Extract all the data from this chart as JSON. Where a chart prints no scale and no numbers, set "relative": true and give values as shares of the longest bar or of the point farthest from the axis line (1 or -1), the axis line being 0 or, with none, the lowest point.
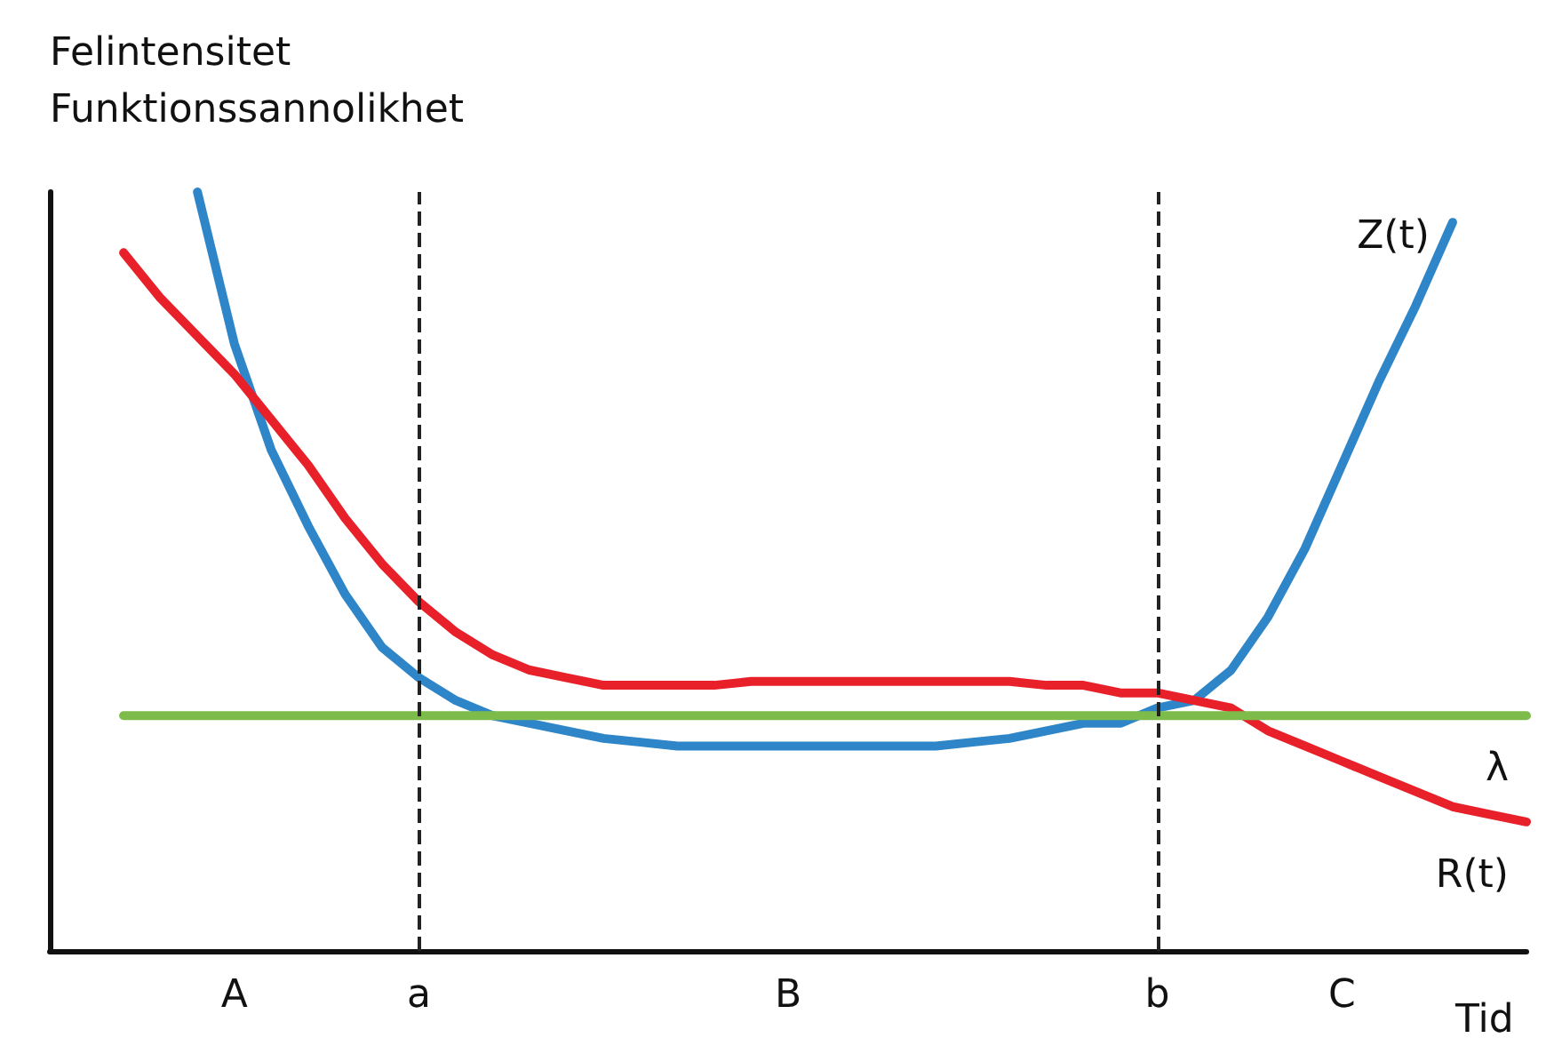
{
  "chart_data": {
    "type": "line",
    "relative": true,
    "ylabel": "Felintensitet\nFunktionssannolikhet",
    "xlabel": "Tid",
    "tick_labels": "x",
    "marker": "none",
    "legend": false,
    "categories": [
      null,
      null,
      null,
      null,
      null,
      "A",
      null,
      null,
      null,
      null,
      "a",
      null,
      null,
      null,
      null,
      null,
      null,
      null,
      null,
      null,
      "B",
      null,
      null,
      null,
      null,
      null,
      null,
      null,
      null,
      null,
      "b",
      null,
      null,
      null,
      null,
      "C",
      null,
      null,
      null,
      null,
      null
    ],
    "series": [
      {
        "name": "Z(t)",
        "color": "#2e86c8",
        "values": [
          null,
          null,
          null,
          null,
          1.0,
          0.8,
          0.66,
          0.56,
          0.47,
          0.4,
          0.36,
          0.33,
          0.31,
          0.3,
          0.29,
          0.28,
          0.275,
          0.27,
          0.27,
          0.27,
          0.27,
          0.27,
          0.27,
          0.27,
          0.27,
          0.275,
          0.28,
          0.29,
          0.3,
          0.3,
          0.32,
          0.33,
          0.37,
          0.44,
          0.53,
          0.64,
          0.75,
          0.85,
          0.96,
          null,
          null
        ]
      },
      {
        "name": "R(t)",
        "color": "#e8202a",
        "values": [
          null,
          null,
          0.92,
          0.86,
          0.81,
          0.76,
          0.7,
          0.64,
          0.57,
          0.51,
          0.46,
          0.42,
          0.39,
          0.37,
          0.36,
          0.35,
          0.35,
          0.35,
          0.35,
          0.355,
          0.355,
          0.355,
          0.355,
          0.355,
          0.355,
          0.355,
          0.355,
          0.35,
          0.35,
          0.34,
          0.34,
          0.33,
          0.32,
          0.29,
          0.27,
          0.25,
          0.23,
          0.21,
          0.19,
          0.18,
          0.17
        ]
      },
      {
        "name": "λ",
        "color": "#7dbb4a",
        "values": [
          null,
          null,
          0.31,
          0.31,
          0.31,
          0.31,
          0.31,
          0.31,
          0.31,
          0.31,
          0.31,
          0.31,
          0.31,
          0.31,
          0.31,
          0.31,
          0.31,
          0.31,
          0.31,
          0.31,
          0.31,
          0.31,
          0.31,
          0.31,
          0.31,
          0.31,
          0.31,
          0.31,
          0.31,
          0.31,
          0.31,
          0.31,
          0.31,
          0.31,
          0.31,
          0.31,
          0.31,
          0.31,
          0.31,
          0.31,
          0.31
        ]
      }
    ],
    "ref_lines": [
      {
        "axis": "x",
        "value": "a",
        "color": "#222222",
        "line_style": "dashed"
      },
      {
        "axis": "x",
        "value": "b",
        "color": "#222222",
        "line_style": "dashed"
      }
    ]
  }
}
